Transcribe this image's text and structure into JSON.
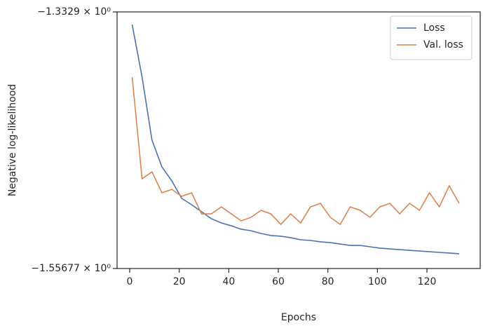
{
  "chart_data": {
    "type": "line",
    "xlabel": "Epochs",
    "ylabel": "Negative log-likelihood",
    "x": [
      1,
      5,
      9,
      13,
      17,
      21,
      25,
      29,
      33,
      37,
      41,
      45,
      49,
      53,
      57,
      61,
      65,
      69,
      73,
      77,
      81,
      85,
      89,
      93,
      97,
      101,
      105,
      109,
      113,
      117,
      121,
      125,
      129,
      133
    ],
    "series": [
      {
        "name": "Loss",
        "color": "#4c72b0",
        "values": [
          -1.3439,
          -1.3898,
          -1.4448,
          -1.4681,
          -1.4803,
          -1.4956,
          -1.5011,
          -1.5072,
          -1.5134,
          -1.517,
          -1.5195,
          -1.5225,
          -1.5238,
          -1.5262,
          -1.528,
          -1.5286,
          -1.5299,
          -1.5317,
          -1.5323,
          -1.5335,
          -1.5342,
          -1.5354,
          -1.5366,
          -1.5366,
          -1.5378,
          -1.539,
          -1.5397,
          -1.5403,
          -1.5409,
          -1.5415,
          -1.5421,
          -1.5427,
          -1.5433,
          -1.5439
        ]
      },
      {
        "name": "Val. loss",
        "color": "#dd8452",
        "values": [
          -1.3898,
          -1.4785,
          -1.4724,
          -1.4907,
          -1.4877,
          -1.4938,
          -1.4907,
          -1.5091,
          -1.5091,
          -1.503,
          -1.5091,
          -1.5152,
          -1.5121,
          -1.506,
          -1.5091,
          -1.5183,
          -1.5091,
          -1.517,
          -1.503,
          -1.4999,
          -1.5121,
          -1.5183,
          -1.503,
          -1.506,
          -1.5121,
          -1.503,
          -1.4999,
          -1.5091,
          -1.4999,
          -1.506,
          -1.4907,
          -1.503,
          -1.4846,
          -1.4999
        ]
      }
    ],
    "xlim": [
      -5.1,
      141.5
    ],
    "xticks": [
      0,
      20,
      40,
      60,
      80,
      100,
      120
    ],
    "ylim": [
      -1.55677,
      -1.3329
    ],
    "yticks": [
      {
        "value": -1.55677,
        "label": "−1.55677 × 10⁰"
      },
      {
        "value": -1.3329,
        "label": "−1.3329 × 10⁰"
      }
    ],
    "grid": false,
    "legend": "upper right"
  }
}
